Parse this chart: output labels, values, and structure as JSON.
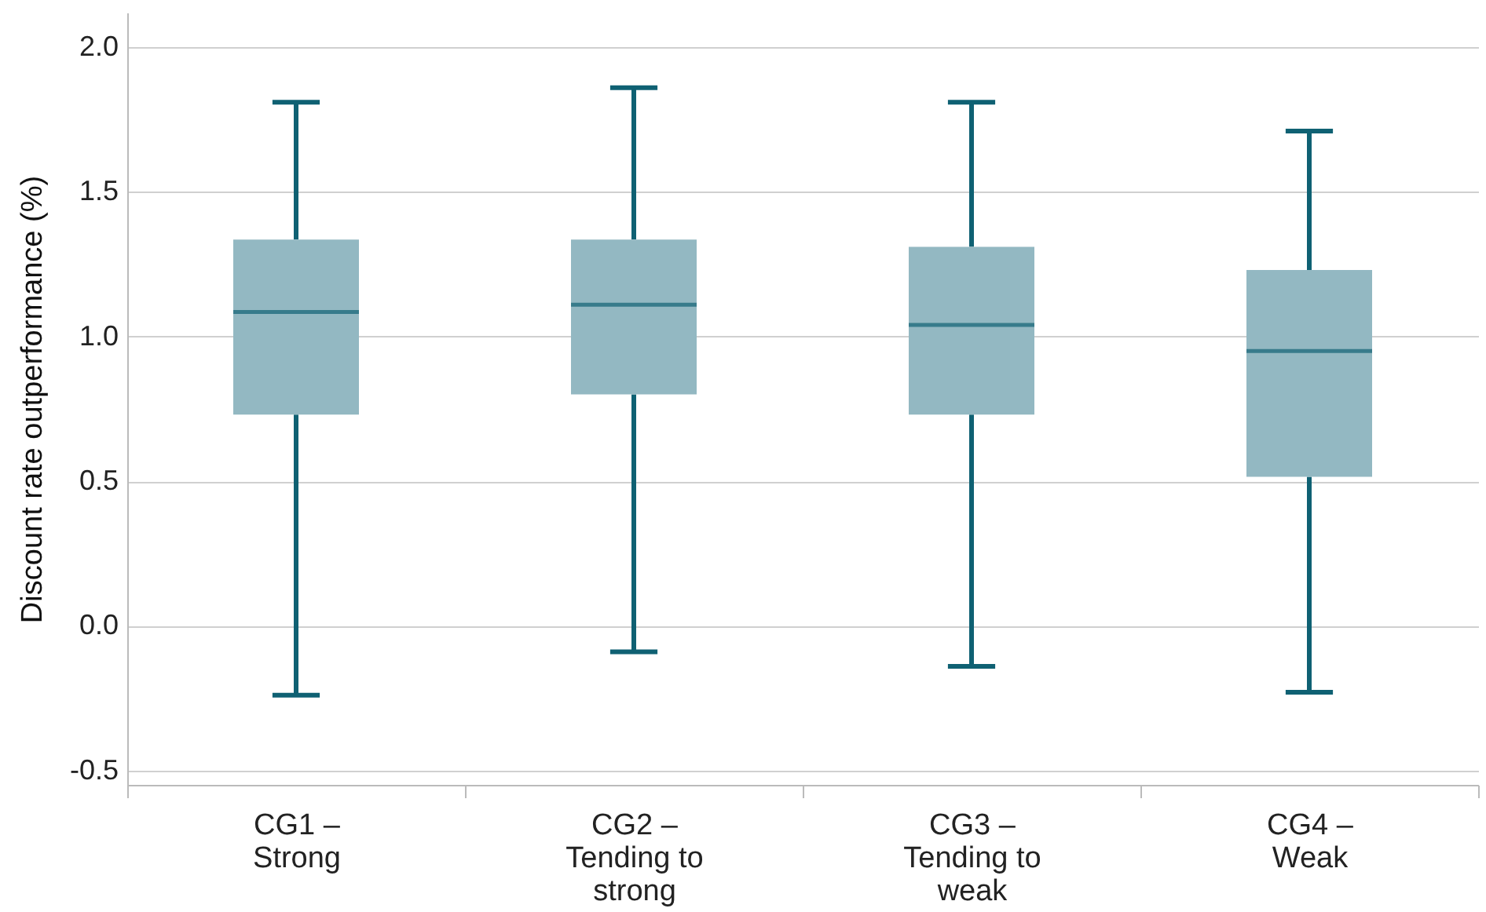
{
  "chart_data": {
    "type": "box",
    "ylabel": "Discount rate outperformance (%)",
    "categories": [
      "CG1 – Strong",
      "CG2 – Tending to strong",
      "CG3 – Tending to weak",
      "CG4 – Weak"
    ],
    "color": "#93b8c2",
    "boxes": [
      {
        "low": -0.24,
        "q1": 0.73,
        "median": 1.085,
        "q3": 1.335,
        "high": 1.81
      },
      {
        "low": -0.09,
        "q1": 0.8,
        "median": 1.11,
        "q3": 1.335,
        "high": 1.86
      },
      {
        "low": -0.14,
        "q1": 0.73,
        "median": 1.04,
        "q3": 1.31,
        "high": 1.81
      },
      {
        "low": -0.23,
        "q1": 0.515,
        "median": 0.95,
        "q3": 1.23,
        "high": 1.71
      }
    ],
    "ylim": [
      -0.55,
      2.12
    ],
    "yticks": [
      {
        "value": -0.5,
        "label": "-0.5"
      },
      {
        "value": 0,
        "label": "0.0"
      },
      0.5,
      {
        "value": 1,
        "label": "1.0"
      },
      1.5,
      {
        "value": 2,
        "label": "2.0"
      }
    ],
    "grid": "y"
  }
}
